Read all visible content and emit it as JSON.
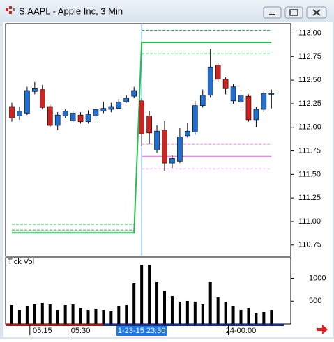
{
  "window_title": "S.AAPL - Apple Inc, 3 Min",
  "chart_data": [
    {
      "type": "candlestick",
      "up_color": "#1f6fd1",
      "down_color": "#d0221e",
      "cursor": 17,
      "cursor_color": "#4a90e2",
      "open": [
        112.22,
        112.12,
        112.15,
        112.38,
        112.4,
        112.22,
        112.02,
        112.12,
        112.07,
        112.13,
        112.06,
        112.12,
        112.17,
        112.19,
        112.2,
        112.27,
        112.33,
        112.28,
        112.12,
        111.76,
        111.97,
        111.62,
        111.64,
        111.91,
        111.95,
        112.23,
        112.34,
        112.66,
        112.51,
        112.28,
        112.27,
        112.33,
        112.08,
        112.19,
        112.35
      ],
      "high": [
        112.26,
        112.22,
        112.43,
        112.48,
        112.45,
        112.24,
        112.16,
        112.19,
        112.18,
        112.16,
        112.18,
        112.22,
        112.27,
        112.26,
        112.3,
        112.34,
        112.43,
        112.31,
        112.17,
        112.02,
        112.07,
        111.7,
        111.99,
        112.05,
        112.28,
        112.4,
        112.83,
        112.68,
        112.53,
        112.46,
        112.4,
        112.35,
        112.22,
        112.38,
        112.4
      ],
      "low": [
        112.06,
        112.08,
        112.13,
        112.35,
        112.19,
        112.0,
        111.97,
        112.1,
        112.04,
        112.04,
        112.04,
        112.1,
        112.15,
        112.16,
        112.19,
        112.26,
        112.31,
        111.8,
        111.82,
        111.73,
        111.54,
        111.57,
        111.62,
        111.89,
        111.92,
        112.21,
        112.32,
        112.48,
        112.35,
        112.25,
        112.22,
        112.06,
        112.0,
        112.16,
        112.2
      ],
      "close": [
        112.1,
        112.17,
        112.39,
        112.41,
        112.21,
        112.02,
        112.13,
        112.17,
        112.15,
        112.06,
        112.14,
        112.19,
        112.2,
        112.22,
        112.27,
        112.31,
        112.39,
        111.93,
        111.94,
        111.96,
        111.62,
        111.67,
        111.9,
        111.96,
        112.23,
        112.34,
        112.64,
        112.51,
        112.41,
        112.43,
        112.34,
        112.08,
        112.19,
        112.36,
        112.36
      ],
      "overlays": [
        {
          "color": "#22c04a",
          "dashed": false,
          "values": [
            110.88,
            110.88,
            110.88,
            110.88,
            110.88,
            110.88,
            110.88,
            110.88,
            110.88,
            110.88,
            110.88,
            110.88,
            110.88,
            110.88,
            110.88,
            110.88,
            110.88,
            112.9,
            112.9,
            112.9,
            112.9,
            112.9,
            112.9,
            112.9,
            112.9,
            112.9,
            112.9,
            112.9,
            112.9,
            112.9,
            112.9,
            112.9,
            112.9,
            112.9,
            112.9
          ]
        },
        {
          "color": "#22c04a",
          "dashed": true,
          "values": [
            110.97,
            110.97,
            110.97,
            110.97,
            110.97,
            110.97,
            110.97,
            110.97,
            110.97,
            110.97,
            110.97,
            110.97,
            110.97,
            110.97,
            110.97,
            110.97,
            110.97,
            null,
            null,
            null,
            null,
            null,
            null,
            null,
            null,
            null,
            null,
            null,
            null,
            null,
            null,
            null,
            null,
            null,
            null
          ]
        },
        {
          "color": "#22c04a",
          "dashed": true,
          "values": [
            110.91,
            110.91,
            110.91,
            110.91,
            110.91,
            110.91,
            110.91,
            110.91,
            110.91,
            110.91,
            110.91,
            110.91,
            110.91,
            110.91,
            110.91,
            110.91,
            110.91,
            null,
            null,
            null,
            null,
            null,
            null,
            null,
            null,
            null,
            null,
            null,
            null,
            null,
            null,
            null,
            null,
            null,
            null
          ]
        },
        {
          "color": "#22c04a",
          "dashed": true,
          "values": [
            null,
            null,
            null,
            null,
            null,
            null,
            null,
            null,
            null,
            null,
            null,
            null,
            null,
            null,
            null,
            null,
            null,
            113.03,
            113.03,
            113.03,
            113.03,
            113.03,
            113.03,
            113.03,
            113.03,
            113.03,
            113.03,
            113.03,
            113.03,
            113.03,
            113.03,
            113.03,
            113.03,
            113.03,
            113.03
          ]
        },
        {
          "color": "#22c04a",
          "dashed": true,
          "values": [
            null,
            null,
            null,
            null,
            null,
            null,
            null,
            null,
            null,
            null,
            null,
            null,
            null,
            null,
            null,
            null,
            null,
            112.78,
            112.78,
            112.78,
            112.78,
            112.78,
            112.78,
            112.78,
            112.78,
            112.78,
            112.78,
            112.78,
            112.78,
            112.78,
            112.78,
            112.78,
            112.78,
            112.78,
            112.78
          ]
        },
        {
          "color": "#f08ae8",
          "dashed": false,
          "values": [
            null,
            null,
            null,
            null,
            null,
            null,
            null,
            null,
            null,
            null,
            null,
            null,
            null,
            null,
            null,
            null,
            null,
            111.69,
            111.69,
            111.69,
            111.69,
            111.69,
            111.69,
            111.69,
            111.69,
            111.69,
            111.69,
            111.69,
            111.69,
            111.69,
            111.69,
            111.69,
            111.69,
            111.69,
            111.69
          ]
        },
        {
          "color": "#f08ae8",
          "dashed": true,
          "values": [
            null,
            null,
            null,
            null,
            null,
            null,
            null,
            null,
            null,
            null,
            null,
            null,
            null,
            null,
            null,
            null,
            null,
            111.82,
            111.82,
            111.82,
            111.82,
            111.82,
            111.82,
            111.82,
            111.82,
            111.82,
            111.82,
            111.82,
            111.82,
            111.82,
            111.82,
            111.82,
            111.82,
            111.82,
            111.82
          ]
        },
        {
          "color": "#f08ae8",
          "dashed": true,
          "values": [
            null,
            null,
            null,
            null,
            null,
            null,
            null,
            null,
            null,
            null,
            null,
            null,
            null,
            null,
            null,
            null,
            null,
            111.56,
            111.56,
            111.56,
            111.56,
            111.56,
            111.56,
            111.56,
            111.56,
            111.56,
            111.56,
            111.56,
            111.56,
            111.56,
            111.56,
            111.56,
            111.56,
            111.56,
            111.56
          ]
        }
      ],
      "ylim": [
        110.63,
        113.1
      ],
      "yticks": [
        {
          "value": 110.75,
          "label": "110.75"
        },
        {
          "value": 111,
          "label": "111.00"
        },
        {
          "value": 111.25,
          "label": "111.25"
        },
        {
          "value": 111.5,
          "label": "111.50"
        },
        {
          "value": 111.75,
          "label": "111.75"
        },
        {
          "value": 112,
          "label": "112.00"
        },
        {
          "value": 112.25,
          "label": "112.25"
        },
        {
          "value": 112.5,
          "label": "112.50"
        },
        {
          "value": 112.75,
          "label": "112.75"
        },
        {
          "value": 113,
          "label": "113.00"
        }
      ]
    },
    {
      "type": "bar",
      "title": "Tick Vol",
      "color": "#000000",
      "values": [
        412,
        305,
        382,
        427,
        458,
        427,
        305,
        412,
        427,
        351,
        305,
        336,
        305,
        275,
        382,
        412,
        885,
        1298,
        1298,
        916,
        718,
        611,
        489,
        504,
        489,
        427,
        916,
        580,
        489,
        382,
        305,
        351,
        229,
        260,
        305
      ],
      "categories": [
        null,
        null,
        null,
        null,
        "05:15",
        null,
        null,
        null,
        null,
        "05:30",
        null,
        null,
        null,
        null,
        null,
        null,
        null,
        "1-23-15 23:30",
        null,
        null,
        null,
        null,
        null,
        null,
        null,
        null,
        null,
        null,
        null,
        null,
        "24-00:00",
        null,
        null,
        null,
        null
      ],
      "ylim": [
        0,
        1450
      ],
      "yticks": [
        500,
        1000
      ]
    }
  ]
}
